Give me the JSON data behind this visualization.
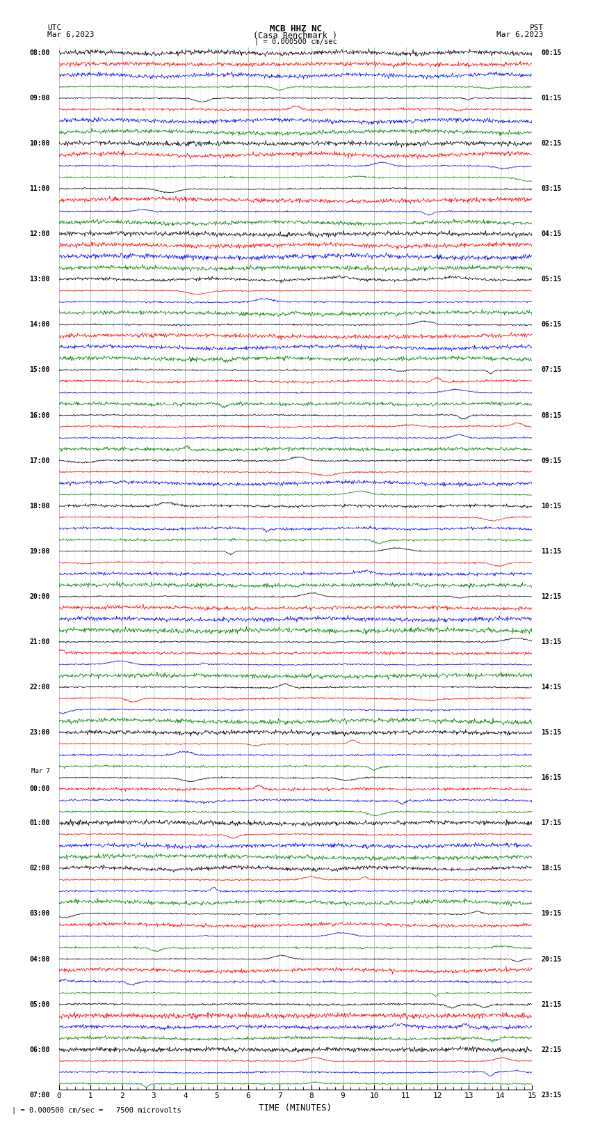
{
  "title_line1": "MCB HHZ NC",
  "title_line2": "(Casa Benchmark )",
  "scale_label": "| = 0.000500 cm/sec",
  "left_label_top": "UTC",
  "left_label_date": "Mar 6,2023",
  "right_label_top": "PST",
  "right_label_date": "Mar 6,2023",
  "bottom_label": "TIME (MINUTES)",
  "bottom_scale_text": "| = 0.000500 cm/sec =   7500 microvolts",
  "left_times_utc": [
    "08:00",
    "",
    "",
    "",
    "09:00",
    "",
    "",
    "",
    "10:00",
    "",
    "",
    "",
    "11:00",
    "",
    "",
    "",
    "12:00",
    "",
    "",
    "",
    "13:00",
    "",
    "",
    "",
    "14:00",
    "",
    "",
    "",
    "15:00",
    "",
    "",
    "",
    "16:00",
    "",
    "",
    "",
    "17:00",
    "",
    "",
    "",
    "18:00",
    "",
    "",
    "",
    "19:00",
    "",
    "",
    "",
    "20:00",
    "",
    "",
    "",
    "21:00",
    "",
    "",
    "",
    "22:00",
    "",
    "",
    "",
    "23:00",
    "",
    "",
    "",
    "Mar 7",
    "00:00",
    "",
    "",
    "01:00",
    "",
    "",
    "",
    "02:00",
    "",
    "",
    "",
    "03:00",
    "",
    "",
    "",
    "04:00",
    "",
    "",
    "",
    "05:00",
    "",
    "",
    "",
    "06:00",
    "",
    "",
    "",
    "07:00"
  ],
  "right_times_pst": [
    "00:15",
    "",
    "",
    "",
    "01:15",
    "",
    "",
    "",
    "02:15",
    "",
    "",
    "",
    "03:15",
    "",
    "",
    "",
    "04:15",
    "",
    "",
    "",
    "05:15",
    "",
    "",
    "",
    "06:15",
    "",
    "",
    "",
    "07:15",
    "",
    "",
    "",
    "08:15",
    "",
    "",
    "",
    "09:15",
    "",
    "",
    "",
    "10:15",
    "",
    "",
    "",
    "11:15",
    "",
    "",
    "",
    "12:15",
    "",
    "",
    "",
    "13:15",
    "",
    "",
    "",
    "14:15",
    "",
    "",
    "",
    "15:15",
    "",
    "",
    "",
    "16:15",
    "",
    "",
    "",
    "17:15",
    "",
    "",
    "",
    "18:15",
    "",
    "",
    "",
    "19:15",
    "",
    "",
    "",
    "20:15",
    "",
    "",
    "",
    "21:15",
    "",
    "",
    "",
    "22:15",
    "",
    "",
    "",
    "23:15"
  ],
  "colors": [
    "black",
    "red",
    "blue",
    "green"
  ],
  "n_rows": 92,
  "n_samples": 900,
  "amplitude_scale": 0.35,
  "bg_color": "white",
  "trace_linewidth": 0.5,
  "x_ticks": [
    0,
    1,
    2,
    3,
    4,
    5,
    6,
    7,
    8,
    9,
    10,
    11,
    12,
    13,
    14,
    15
  ],
  "grid_color": "#aaaaaa",
  "font_family": "monospace"
}
